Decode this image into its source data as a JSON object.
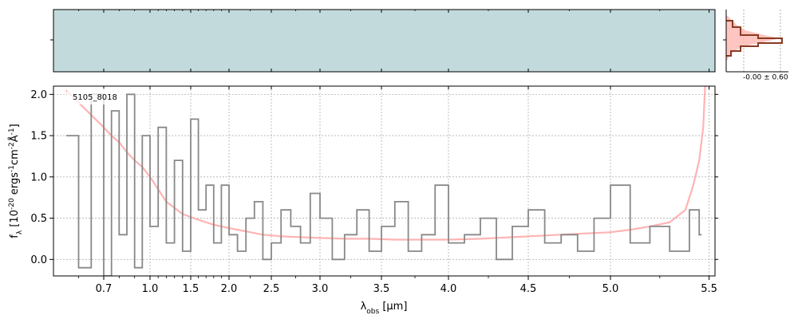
{
  "chart_data": [
    {
      "panel": "spectrum",
      "type": "line",
      "label": "5105_8018",
      "xlabel_main": "λ",
      "xlabel_sub": "obs",
      "xlabel_unit": " [μm]",
      "ylabel": "f_λ [10^{-20} ergs^{-1}cm^{-2}Å^{-1}]",
      "xlim": [
        0.5,
        5.53
      ],
      "ylim": [
        -0.2,
        2.1
      ],
      "x_scale": "reciprocal-stretch",
      "grid": true,
      "x_ticks": [
        {
          "v": 0.7,
          "label": "0.7"
        },
        {
          "v": 1.0,
          "label": "1.0"
        },
        {
          "v": 1.5,
          "label": "1.5"
        },
        {
          "v": 2.0,
          "label": "2.0"
        },
        {
          "v": 2.5,
          "label": "2.5"
        },
        {
          "v": 3.0,
          "label": "3.0"
        },
        {
          "v": 3.5,
          "label": "3.5"
        },
        {
          "v": 4.0,
          "label": "4.0"
        },
        {
          "v": 4.5,
          "label": "4.5"
        },
        {
          "v": 5.0,
          "label": "5.0"
        },
        {
          "v": 5.5,
          "label": "5.5"
        }
      ],
      "y_ticks": [
        {
          "v": 0.0,
          "label": "0.0"
        },
        {
          "v": 0.5,
          "label": "0.5"
        },
        {
          "v": 1.0,
          "label": "1.0"
        },
        {
          "v": 1.5,
          "label": "1.5"
        },
        {
          "v": 2.0,
          "label": "2.0"
        }
      ],
      "series": [
        {
          "kind": "data",
          "color": "#888888",
          "x": [
            0.55,
            0.6,
            0.65,
            0.7,
            0.75,
            0.8,
            0.85,
            0.9,
            0.95,
            1.0,
            1.1,
            1.2,
            1.3,
            1.4,
            1.5,
            1.6,
            1.7,
            1.8,
            1.9,
            2.0,
            2.1,
            2.2,
            2.3,
            2.4,
            2.5,
            2.6,
            2.7,
            2.8,
            2.9,
            3.0,
            3.1,
            3.2,
            3.3,
            3.4,
            3.5,
            3.6,
            3.7,
            3.8,
            3.9,
            4.0,
            4.1,
            4.2,
            4.3,
            4.4,
            4.5,
            4.6,
            4.7,
            4.8,
            4.9,
            5.0,
            5.1,
            5.2,
            5.3,
            5.4,
            5.45
          ],
          "y": [
            1.5,
            -0.1,
            2.0,
            -0.2,
            1.8,
            0.3,
            2.0,
            -0.1,
            1.5,
            0.4,
            1.6,
            0.2,
            1.2,
            0.1,
            1.7,
            0.6,
            0.9,
            0.2,
            0.9,
            0.3,
            0.1,
            0.5,
            0.7,
            0.0,
            0.2,
            0.6,
            0.4,
            0.2,
            0.8,
            0.5,
            0.0,
            0.3,
            0.6,
            0.1,
            0.4,
            0.7,
            0.1,
            0.3,
            0.9,
            0.2,
            0.3,
            0.5,
            0.0,
            0.4,
            0.6,
            0.2,
            0.3,
            0.1,
            0.5,
            0.9,
            0.2,
            0.4,
            0.1,
            0.6,
            0.3
          ]
        },
        {
          "kind": "model",
          "color": "#ff9a9a",
          "x": [
            0.55,
            0.6,
            0.65,
            0.7,
            0.75,
            0.8,
            0.85,
            0.9,
            0.95,
            1.0,
            1.2,
            1.4,
            1.6,
            1.8,
            2.0,
            2.2,
            2.4,
            2.6,
            2.8,
            3.0,
            3.2,
            3.4,
            3.6,
            3.8,
            4.0,
            4.2,
            4.4,
            4.6,
            4.8,
            5.0,
            5.1,
            5.2,
            5.3,
            5.38,
            5.42,
            5.45,
            5.47,
            5.48
          ],
          "y": [
            2.05,
            1.9,
            1.75,
            1.6,
            1.5,
            1.42,
            1.3,
            1.2,
            1.12,
            1.0,
            0.7,
            0.55,
            0.48,
            0.42,
            0.38,
            0.34,
            0.3,
            0.28,
            0.27,
            0.26,
            0.25,
            0.25,
            0.24,
            0.24,
            0.24,
            0.25,
            0.27,
            0.29,
            0.31,
            0.33,
            0.36,
            0.4,
            0.45,
            0.6,
            0.9,
            1.2,
            1.6,
            2.1
          ]
        }
      ]
    },
    {
      "panel": "2d-spectrum",
      "type": "heatmap",
      "colormap": [
        "#ffffff",
        "#c2dadb",
        "#6a8797",
        "#0a0f2a"
      ]
    },
    {
      "panel": "profile",
      "type": "line",
      "annotation": "-0.00 ± 0.60",
      "series": [
        {
          "name": "profile-fill",
          "color": "#ffb6b0"
        },
        {
          "name": "profile-line",
          "color": "#8a3b22"
        }
      ]
    }
  ]
}
